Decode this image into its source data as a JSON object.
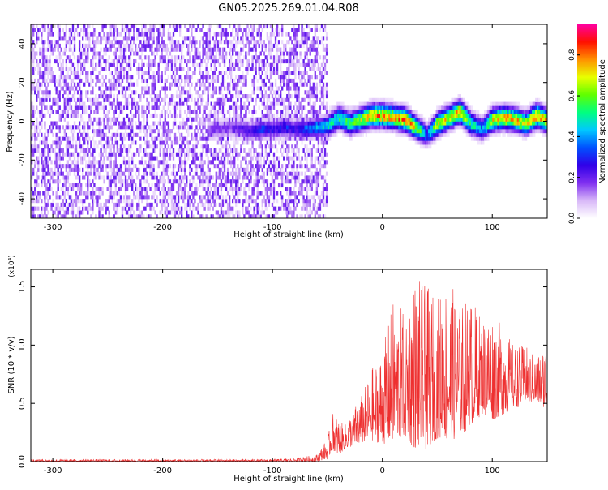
{
  "title": "GN05.2025.269.01.04.R08",
  "chart_data": [
    {
      "type": "heatmap",
      "name": "spectrogram",
      "xlabel": "Height of straight line (km)",
      "ylabel": "Frequency (Hz)",
      "xlim": [
        -320,
        150
      ],
      "ylim": [
        -50,
        50
      ],
      "x_ticks": [
        -300,
        -200,
        -100,
        0,
        100
      ],
      "x_tick_labels": [
        "-300",
        "-200",
        "-100",
        "0",
        "100"
      ],
      "y_ticks": [
        -40,
        -20,
        0,
        20,
        40
      ],
      "y_tick_labels": [
        "-40",
        "-20",
        "0",
        "20",
        "40"
      ],
      "colorbar": {
        "label": "Normalized spectral amplitude",
        "range": [
          0,
          0.95
        ],
        "ticks": [
          0.0,
          0.2,
          0.4,
          0.6,
          0.8
        ],
        "tick_labels": [
          "0.0",
          "0.2",
          "0.4",
          "0.6",
          "0.8"
        ],
        "colors": [
          "#ffffff",
          "#d8b8f8",
          "#8030f0",
          "#3000e8",
          "#0050ff",
          "#00c8ff",
          "#00ff80",
          "#60ff00",
          "#e8ff00",
          "#ff9000",
          "#ff1000",
          "#ff00a0"
        ]
      },
      "ridge": {
        "x": [
          -160,
          -150,
          -140,
          -130,
          -120,
          -110,
          -100,
          -90,
          -80,
          -70,
          -60,
          -50,
          -40,
          -30,
          -20,
          -10,
          0,
          10,
          20,
          30,
          40,
          50,
          60,
          70,
          80,
          90,
          100,
          110,
          120,
          130,
          140,
          150
        ],
        "y": [
          -5,
          -4,
          -3,
          -4,
          -5,
          -4,
          -4,
          -3,
          -4,
          -4,
          -3,
          -2,
          2,
          -1,
          1,
          3,
          3,
          2,
          1,
          -3,
          -7,
          -1,
          2,
          5,
          -1,
          -4,
          1,
          2,
          1,
          -1,
          3,
          0
        ],
        "peak_amplitude": [
          0.2,
          0.2,
          0.2,
          0.25,
          0.3,
          0.35,
          0.3,
          0.35,
          0.3,
          0.4,
          0.5,
          0.55,
          0.6,
          0.65,
          0.75,
          0.85,
          0.9,
          0.85,
          0.95,
          0.8,
          0.4,
          0.85,
          0.8,
          0.9,
          0.6,
          0.45,
          0.8,
          0.9,
          0.85,
          0.8,
          0.95,
          0.8
        ]
      },
      "noise_region_x": [
        -320,
        -50
      ]
    },
    {
      "type": "line",
      "name": "snr",
      "xlabel": "Height of straight line (km)",
      "ylabel": "SNR (10 * v/v)",
      "y_multiplier_label": "(x10⁴)",
      "xlim": [
        -320,
        150
      ],
      "ylim": [
        0,
        1.65
      ],
      "x_ticks": [
        -300,
        -200,
        -100,
        0,
        100
      ],
      "x_tick_labels": [
        "-300",
        "-200",
        "-100",
        "0",
        "100"
      ],
      "y_ticks": [
        0.0,
        0.5,
        1.0,
        1.5
      ],
      "y_tick_labels": [
        "0.0",
        "0.5",
        "1.0",
        "1.5"
      ],
      "color": "#ee3030",
      "envelope": {
        "x": [
          -320,
          -250,
          -200,
          -150,
          -100,
          -80,
          -60,
          -50,
          -45,
          -40,
          -35,
          -30,
          -20,
          -10,
          0,
          10,
          20,
          30,
          40,
          50,
          60,
          70,
          80,
          90,
          100,
          110,
          120,
          130,
          140,
          150
        ],
        "low": [
          0.0,
          0.0,
          0.0,
          0.0,
          0.0,
          0.0,
          0.0,
          0.02,
          0.1,
          0.05,
          0.1,
          0.12,
          0.15,
          0.18,
          0.15,
          0.15,
          0.2,
          0.1,
          0.1,
          0.2,
          0.15,
          0.2,
          0.3,
          0.4,
          0.35,
          0.4,
          0.45,
          0.5,
          0.5,
          0.45
        ],
        "high": [
          0.02,
          0.02,
          0.02,
          0.02,
          0.02,
          0.03,
          0.06,
          0.2,
          0.42,
          0.38,
          0.3,
          0.4,
          0.55,
          0.8,
          0.95,
          1.4,
          1.3,
          1.62,
          1.5,
          1.42,
          1.6,
          1.35,
          1.42,
          1.25,
          1.3,
          1.15,
          1.0,
          1.0,
          0.9,
          1.05
        ]
      }
    }
  ]
}
